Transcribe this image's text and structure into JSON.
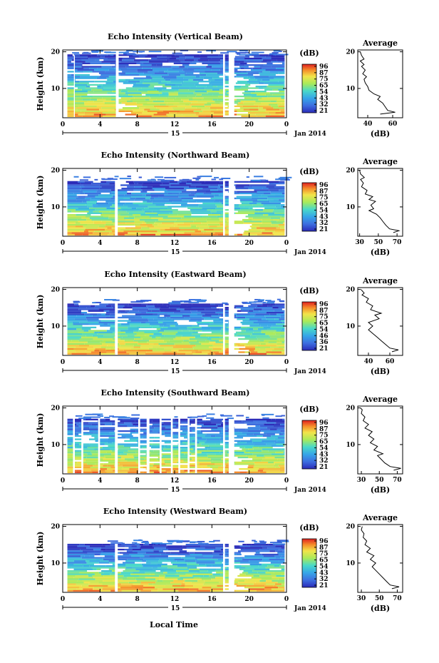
{
  "figure": {
    "xlabel": "Local Time",
    "date_label": "Jan 2014",
    "day_label": "15",
    "ylabel": "Height (km)",
    "avg_title": "Average",
    "cb_unit": "(dB)",
    "avg_xunit": "(dB)"
  },
  "chart_data": [
    {
      "type": "heatmap",
      "title": "Echo Intensity (Vertical Beam)",
      "x": [
        0,
        4,
        8,
        12,
        16,
        20,
        0
      ],
      "xlim": [
        0,
        24
      ],
      "y": [
        10,
        20
      ],
      "ylim": [
        2,
        20.5
      ],
      "colorbar": {
        "ticks": [
          96,
          87,
          75,
          65,
          54,
          43,
          32,
          21
        ],
        "label": "(dB)"
      },
      "gaps": [
        [
          1.2,
          1.3
        ],
        [
          5.7,
          6.0
        ],
        [
          17.2,
          17.4
        ],
        [
          17.8,
          18.4
        ]
      ],
      "cutoff_km": 19,
      "average_profile": {
        "xticks": [
          40,
          60
        ],
        "xlim": [
          32,
          68
        ],
        "points": [
          [
            50,
            3.0
          ],
          [
            62,
            3.5
          ],
          [
            56,
            4.0
          ],
          [
            54,
            5.0
          ],
          [
            52,
            6.0
          ],
          [
            48,
            7.0
          ],
          [
            50,
            7.8
          ],
          [
            45,
            8.5
          ],
          [
            41,
            9.5
          ],
          [
            40,
            10.5
          ],
          [
            38,
            11.5
          ],
          [
            37,
            12.5
          ],
          [
            39,
            13.2
          ],
          [
            36,
            14.0
          ],
          [
            38,
            15.0
          ],
          [
            35,
            16.0
          ],
          [
            37,
            16.5
          ],
          [
            34,
            17.5
          ],
          [
            37,
            18.0
          ],
          [
            35,
            19.0
          ],
          [
            34,
            20.0
          ]
        ]
      }
    },
    {
      "type": "heatmap",
      "title": "Echo Intensity (Northward Beam)",
      "x": [
        0,
        4,
        8,
        12,
        16,
        20,
        0
      ],
      "xlim": [
        0,
        24
      ],
      "y": [
        10,
        20
      ],
      "ylim": [
        2,
        20.5
      ],
      "colorbar": {
        "ticks": [
          96,
          87,
          75,
          65,
          54,
          43,
          32,
          21
        ],
        "label": "(dB)"
      },
      "gaps": [
        [
          5.6,
          5.9
        ],
        [
          17.2,
          17.4
        ],
        [
          17.8,
          18.4
        ]
      ],
      "cutoff_km": 17,
      "average_profile": {
        "xticks": [
          30,
          50,
          70
        ],
        "xlim": [
          28,
          76
        ],
        "points": [
          [
            66,
            3.0
          ],
          [
            72,
            3.5
          ],
          [
            62,
            4.0
          ],
          [
            58,
            5.0
          ],
          [
            55,
            6.0
          ],
          [
            52,
            7.0
          ],
          [
            48,
            8.0
          ],
          [
            40,
            9.0
          ],
          [
            45,
            9.5
          ],
          [
            42,
            10.5
          ],
          [
            47,
            11.5
          ],
          [
            40,
            12.0
          ],
          [
            44,
            12.8
          ],
          [
            36,
            13.5
          ],
          [
            38,
            14.5
          ],
          [
            32,
            15.5
          ],
          [
            34,
            16.5
          ],
          [
            31,
            17.5
          ],
          [
            35,
            18.0
          ],
          [
            31,
            19.0
          ],
          [
            30,
            20.0
          ]
        ]
      }
    },
    {
      "type": "heatmap",
      "title": "Echo Intensity (Eastward Beam)",
      "x": [
        0,
        4,
        8,
        12,
        16,
        20,
        0
      ],
      "xlim": [
        0,
        24
      ],
      "y": [
        10,
        20
      ],
      "ylim": [
        2,
        20.5
      ],
      "colorbar": {
        "ticks": [
          96,
          87,
          75,
          65,
          54,
          46,
          36,
          21
        ],
        "label": "(dB)"
      },
      "gaps": [
        [
          5.6,
          5.9
        ],
        [
          17.2,
          17.4
        ],
        [
          17.8,
          18.4
        ]
      ],
      "cutoff_km": 16,
      "average_profile": {
        "xticks": [
          40,
          60
        ],
        "xlim": [
          30,
          72
        ],
        "points": [
          [
            62,
            3.0
          ],
          [
            68,
            3.5
          ],
          [
            60,
            4.0
          ],
          [
            56,
            5.0
          ],
          [
            52,
            6.0
          ],
          [
            48,
            7.0
          ],
          [
            44,
            8.0
          ],
          [
            40,
            9.0
          ],
          [
            44,
            10.0
          ],
          [
            40,
            11.0
          ],
          [
            50,
            12.0
          ],
          [
            46,
            13.0
          ],
          [
            52,
            13.5
          ],
          [
            42,
            14.5
          ],
          [
            44,
            15.5
          ],
          [
            38,
            16.5
          ],
          [
            40,
            17.5
          ],
          [
            34,
            18.5
          ],
          [
            36,
            19.0
          ],
          [
            33,
            20.0
          ]
        ]
      }
    },
    {
      "type": "heatmap",
      "title": "Echo Intensity (Southward Beam)",
      "x": [
        0,
        4,
        8,
        12,
        16,
        20,
        0
      ],
      "xlim": [
        0,
        24
      ],
      "y": [
        10,
        20
      ],
      "ylim": [
        2,
        20.5
      ],
      "colorbar": {
        "ticks": [
          96,
          87,
          75,
          65,
          54,
          43,
          32,
          21
        ],
        "label": "(dB)"
      },
      "gaps": [
        [
          1.1,
          1.3
        ],
        [
          2.0,
          2.2
        ],
        [
          3.8,
          4.0
        ],
        [
          5.6,
          5.9
        ],
        [
          8.1,
          8.3
        ],
        [
          9.0,
          9.3
        ],
        [
          10.4,
          10.6
        ],
        [
          11.6,
          11.8
        ],
        [
          12.4,
          12.6
        ],
        [
          13.4,
          13.6
        ],
        [
          14.2,
          14.4
        ],
        [
          17.2,
          17.4
        ],
        [
          17.8,
          18.4
        ]
      ],
      "cutoff_km": 17,
      "average_profile": {
        "xticks": [
          30,
          50,
          70
        ],
        "xlim": [
          26,
          76
        ],
        "points": [
          [
            66,
            3.0
          ],
          [
            74,
            3.5
          ],
          [
            62,
            4.0
          ],
          [
            56,
            5.0
          ],
          [
            52,
            6.0
          ],
          [
            48,
            7.0
          ],
          [
            54,
            7.5
          ],
          [
            44,
            8.5
          ],
          [
            48,
            9.5
          ],
          [
            40,
            10.5
          ],
          [
            44,
            11.5
          ],
          [
            38,
            12.5
          ],
          [
            42,
            13.5
          ],
          [
            34,
            14.5
          ],
          [
            38,
            15.5
          ],
          [
            32,
            16.5
          ],
          [
            34,
            17.5
          ],
          [
            30,
            18.5
          ],
          [
            31,
            19.5
          ],
          [
            29,
            20.0
          ]
        ]
      }
    },
    {
      "type": "heatmap",
      "title": "Echo Intensity (Westward Beam)",
      "x": [
        0,
        4,
        8,
        12,
        16,
        20,
        0
      ],
      "xlim": [
        0,
        24
      ],
      "y": [
        10,
        20
      ],
      "ylim": [
        2,
        20.5
      ],
      "colorbar": {
        "ticks": [
          96,
          87,
          75,
          65,
          54,
          43,
          32,
          21
        ],
        "label": "(dB)"
      },
      "gaps": [
        [
          5.6,
          5.9
        ],
        [
          17.2,
          17.4
        ],
        [
          17.8,
          18.4
        ]
      ],
      "cutoff_km": 15,
      "average_profile": {
        "xticks": [
          30,
          50,
          70
        ],
        "xlim": [
          26,
          76
        ],
        "points": [
          [
            64,
            3.0
          ],
          [
            72,
            3.5
          ],
          [
            62,
            4.0
          ],
          [
            58,
            5.0
          ],
          [
            54,
            6.0
          ],
          [
            50,
            7.0
          ],
          [
            46,
            8.0
          ],
          [
            42,
            9.0
          ],
          [
            46,
            10.0
          ],
          [
            40,
            11.0
          ],
          [
            44,
            12.0
          ],
          [
            36,
            13.0
          ],
          [
            40,
            14.0
          ],
          [
            34,
            15.0
          ],
          [
            36,
            16.0
          ],
          [
            32,
            17.0
          ],
          [
            33,
            18.0
          ],
          [
            30,
            19.0
          ],
          [
            31,
            20.0
          ]
        ]
      }
    }
  ]
}
